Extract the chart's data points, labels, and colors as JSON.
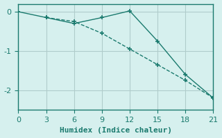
{
  "xlabel": "Humidex (Indice chaleur)",
  "ylabel": "",
  "background_color": "#d6f0ee",
  "grid_color": "#b0cccb",
  "line_color": "#1a7a6e",
  "xlim": [
    0,
    21
  ],
  "ylim": [
    -2.5,
    0.2
  ],
  "xticks": [
    0,
    3,
    6,
    9,
    12,
    15,
    18,
    21
  ],
  "yticks": [
    0,
    -1,
    -2
  ],
  "line1_x": [
    0,
    3,
    6,
    9,
    12,
    15,
    18,
    21
  ],
  "line1_y": [
    0.0,
    -0.15,
    -0.3,
    -0.15,
    0.02,
    -0.75,
    -1.6,
    -2.2
  ],
  "line2_x": [
    3,
    6,
    9,
    12,
    15,
    18,
    21
  ],
  "line2_y": [
    -0.15,
    -0.25,
    -0.55,
    -0.95,
    -1.35,
    -1.75,
    -2.2
  ],
  "marker_size": 4,
  "line_width": 1.0
}
